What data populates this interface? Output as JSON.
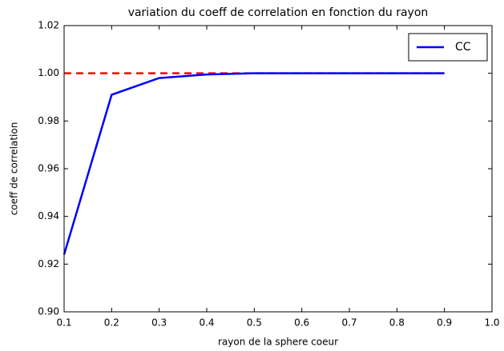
{
  "chart_data": {
    "type": "line",
    "title": "variation du coeff de correlation en fonction du rayon",
    "x_label": "rayon de la sphere coeur",
    "y_label": "coeff de correlation",
    "x": [
      0.1,
      0.2,
      0.3,
      0.4,
      0.5,
      0.6,
      0.7,
      0.8,
      0.9
    ],
    "series": [
      {
        "name": "CC",
        "color": "#0000ff",
        "values": [
          0.924,
          0.991,
          0.998,
          0.9995,
          1.0,
          1.0,
          1.0,
          1.0,
          1.0
        ]
      }
    ],
    "reference_line": {
      "value": 1.0,
      "x": [
        0.1,
        0.9
      ],
      "color": "#ff0000",
      "style": "dashed"
    },
    "xlim": [
      0.1,
      1.0
    ],
    "xticks": [
      0.1,
      0.2,
      0.3,
      0.4,
      0.5,
      0.6,
      0.7,
      0.8,
      0.9,
      {
        "value": 1.0,
        "label": "1.0"
      }
    ],
    "ylim": [
      0.9,
      1.02
    ],
    "yticks": [
      {
        "value": 0.9,
        "label": "0.90"
      },
      0.92,
      0.94,
      0.96,
      0.98,
      {
        "value": 1.0,
        "label": "1.00"
      },
      1.02
    ],
    "legend": "upper right"
  }
}
